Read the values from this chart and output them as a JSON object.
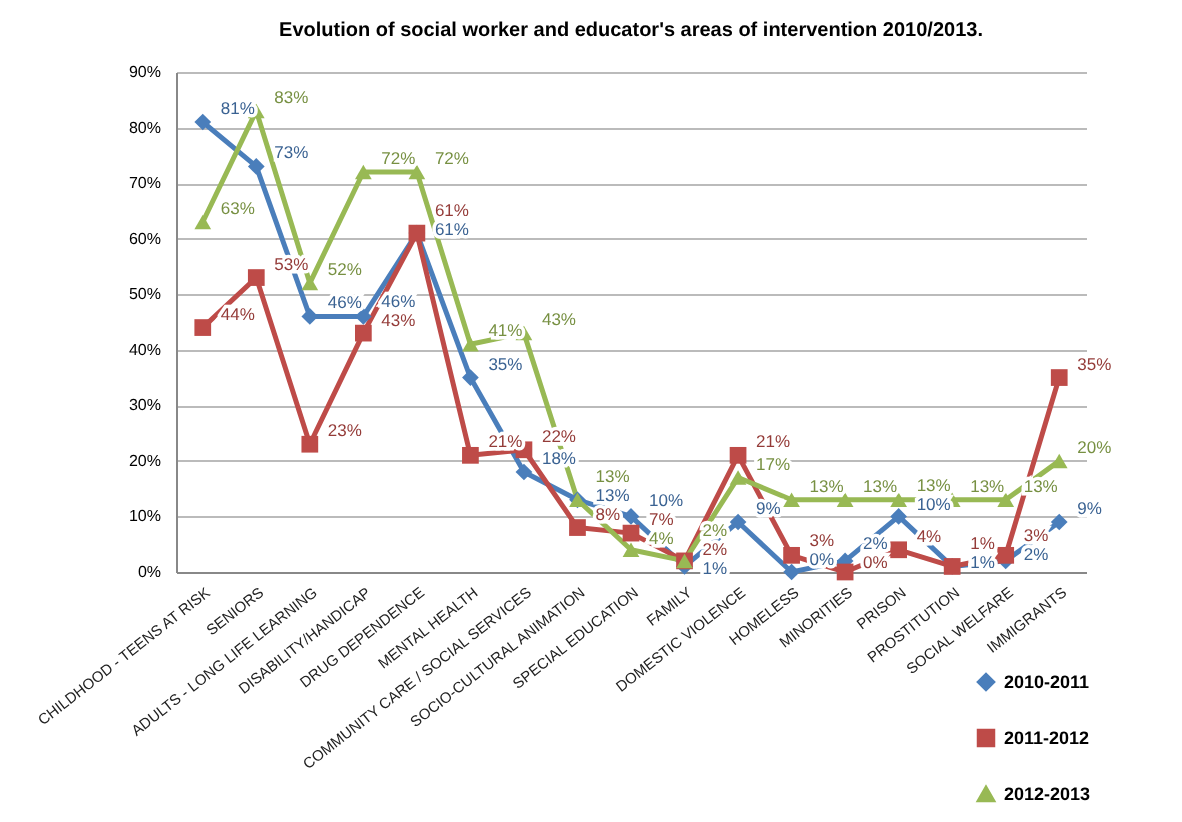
{
  "chart_data": {
    "type": "line",
    "title": "Evolution of social worker and educator's areas of intervention 2010/2013.",
    "categories": [
      "CHILDHOOD - TEENS AT RISK",
      "SENIORS",
      "ADULTS - LONG LIFE LEARNING",
      "DISABILITY/HANDICAP",
      "DRUG DEPENDENCE",
      "MENTAL HEALTH",
      "COMMUNITY CARE / SOCIAL SERVICES",
      "SOCIO-CULTURAL ANIMATION",
      "SPECIAL EDUCATION",
      "FAMILY",
      "DOMESTIC VIOLENCE",
      "HOMELESS",
      "MINORITIES",
      "PRISON",
      "PROSTITUTION",
      "SOCIAL WELFARE",
      "IMMIGRANTS"
    ],
    "series": [
      {
        "name": "2010-2011",
        "color": "#4a7ebb",
        "marker": "diamond",
        "values": [
          81,
          73,
          46,
          46,
          61,
          35,
          18,
          13,
          10,
          1,
          9,
          0,
          2,
          10,
          1,
          2,
          9
        ],
        "value_labels": [
          "81%",
          "73%",
          "46%",
          "46%",
          "61%",
          "35%",
          "18%",
          "13%",
          "10%",
          "1%",
          "9%",
          "0%",
          "2%",
          "10%",
          "1%",
          "2%",
          "9%"
        ]
      },
      {
        "name": "2011-2012",
        "color": "#be4b48",
        "marker": "square",
        "values": [
          44,
          53,
          23,
          43,
          61,
          21,
          22,
          8,
          7,
          2,
          21,
          3,
          0,
          4,
          1,
          3,
          35
        ],
        "value_labels": [
          "44%",
          "53%",
          "23%",
          "43%",
          "61%",
          "21%",
          "22%",
          "8%",
          "7%",
          "2%",
          "21%",
          "3%",
          "0%",
          "4%",
          "1%",
          "3%",
          "35%"
        ]
      },
      {
        "name": "2012-2013",
        "color": "#98b954",
        "marker": "triangle",
        "values": [
          63,
          83,
          52,
          72,
          72,
          41,
          43,
          13,
          4,
          2,
          17,
          13,
          13,
          13,
          13,
          13,
          20
        ],
        "value_labels": [
          "63%",
          "83%",
          "52%",
          "72%",
          "72%",
          "41%",
          "43%",
          "13%",
          "4%",
          "2%",
          "17%",
          "13%",
          "13%",
          "13%",
          "13%",
          "13%",
          "20%"
        ]
      }
    ],
    "ylim": [
      0,
      90
    ],
    "yticks": [
      {
        "value": 0,
        "label": "0%"
      },
      {
        "value": 10,
        "label": "10%"
      },
      {
        "value": 20,
        "label": "20%"
      },
      {
        "value": 30,
        "label": "30%"
      },
      {
        "value": 40,
        "label": "40%"
      },
      {
        "value": 50,
        "label": "50%"
      },
      {
        "value": 60,
        "label": "60%"
      },
      {
        "value": 70,
        "label": "70%"
      },
      {
        "value": 80,
        "label": "80%"
      },
      {
        "value": 90,
        "label": "90%"
      }
    ],
    "grid": "y",
    "legend": "bottom right",
    "line_style": "solid"
  }
}
